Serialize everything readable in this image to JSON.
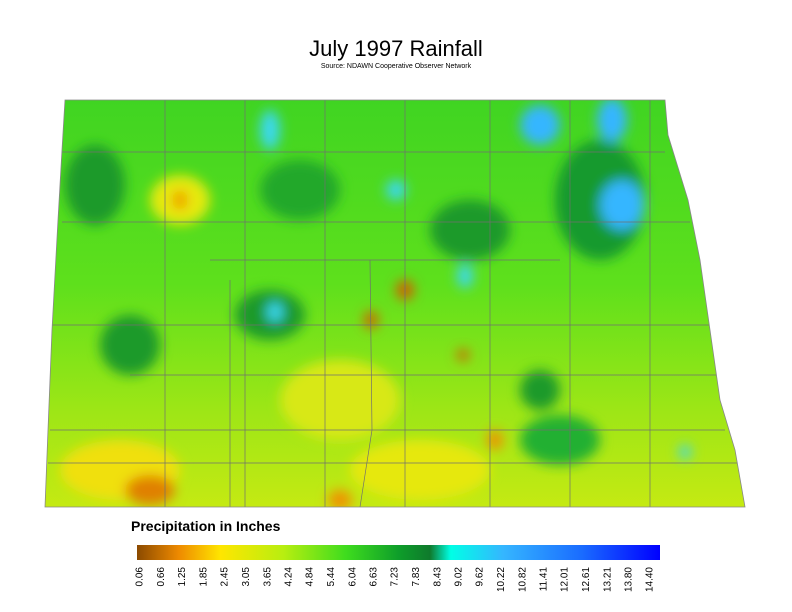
{
  "header": {
    "title": "July 1997 Rainfall",
    "source": "Source: NDAWN Cooperative Observer Network"
  },
  "legend": {
    "title": "Precipitation in Inches",
    "ticks": [
      0.06,
      0.66,
      1.25,
      1.85,
      2.45,
      3.05,
      3.65,
      4.24,
      4.84,
      5.44,
      6.04,
      6.63,
      7.23,
      7.83,
      8.43,
      9.02,
      9.62,
      10.22,
      10.82,
      11.41,
      12.01,
      12.61,
      13.21,
      {
        "value": 13.8,
        "label": "13.80"
      },
      {
        "value": 14.4,
        "label": "14.40"
      }
    ]
  }
}
